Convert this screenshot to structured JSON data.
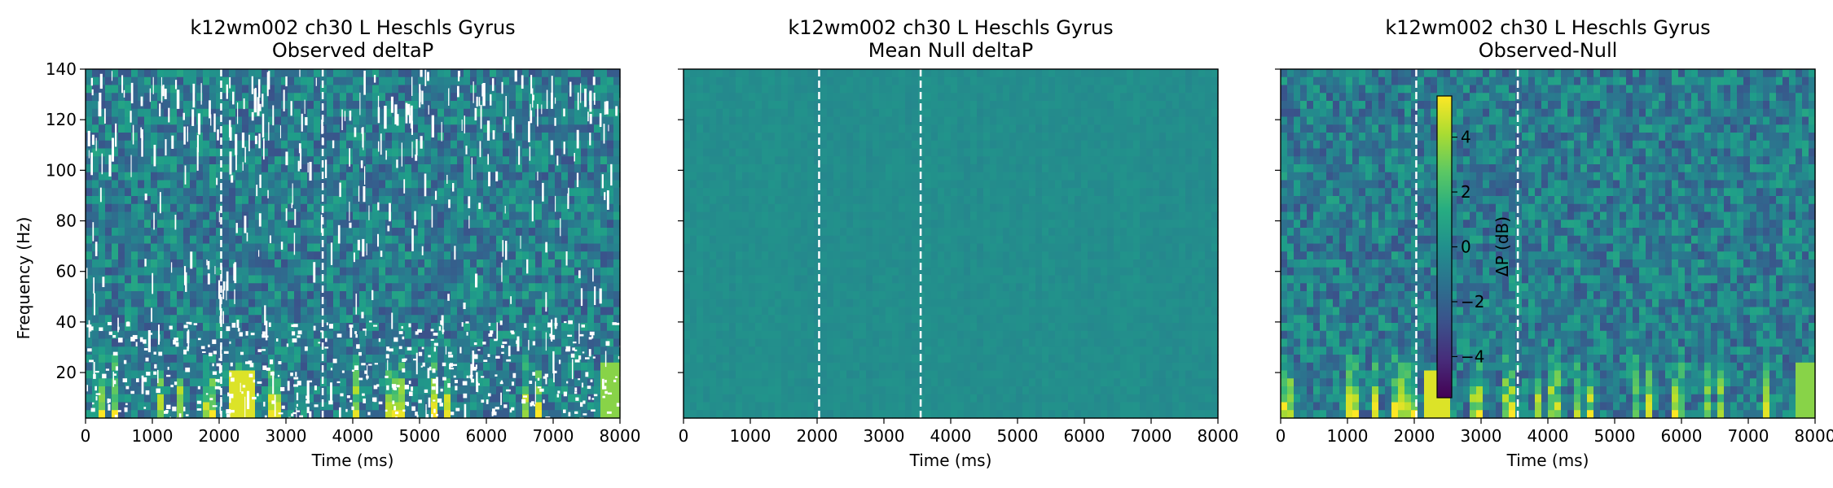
{
  "figure": {
    "colormap": "viridis",
    "marker_color": "#ffffff"
  },
  "chart_data": [
    {
      "type": "heatmap",
      "title": "k12wm002 ch30 L Heschls Gyrus",
      "subtitle": "Observed deltaP",
      "xlabel": "Time (ms)",
      "ylabel": "Frequency (Hz)",
      "xlim": [
        0,
        8000
      ],
      "ylim": [
        2,
        140
      ],
      "xticks": [
        0,
        1000,
        2000,
        3000,
        4000,
        5000,
        6000,
        7000,
        8000
      ],
      "yticks": [
        20,
        40,
        60,
        80,
        100,
        120,
        140
      ],
      "markers_x": [
        2030,
        3550
      ],
      "masked": true,
      "show_y_tick_labels": true
    },
    {
      "type": "heatmap",
      "title": "k12wm002 ch30 L Heschls Gyrus",
      "subtitle": "Mean Null deltaP",
      "xlabel": "Time (ms)",
      "ylabel": "",
      "xlim": [
        0,
        8000
      ],
      "ylim": [
        2,
        140
      ],
      "xticks": [
        0,
        1000,
        2000,
        3000,
        4000,
        5000,
        6000,
        7000,
        8000
      ],
      "yticks": [
        20,
        40,
        60,
        80,
        100,
        120,
        140
      ],
      "markers_x": [
        2030,
        3550
      ],
      "masked": false,
      "show_y_tick_labels": false
    },
    {
      "type": "heatmap",
      "title": "k12wm002 ch30 L Heschls Gyrus",
      "subtitle": "Observed-Null",
      "xlabel": "Time (ms)",
      "ylabel": "",
      "xlim": [
        0,
        8000
      ],
      "ylim": [
        2,
        140
      ],
      "xticks": [
        0,
        1000,
        2000,
        3000,
        4000,
        5000,
        6000,
        7000,
        8000
      ],
      "yticks": [
        20,
        40,
        60,
        80,
        100,
        120,
        140
      ],
      "markers_x": [
        2030,
        3550
      ],
      "masked": false,
      "show_y_tick_labels": false,
      "colorbar": {
        "label": "ΔP (dB)",
        "range": [
          -5.5,
          5.5
        ],
        "ticks": [
          -4,
          -2,
          0,
          2,
          4
        ],
        "tick_labels": [
          "−4",
          "−2",
          "0",
          "2",
          "4"
        ]
      }
    }
  ]
}
